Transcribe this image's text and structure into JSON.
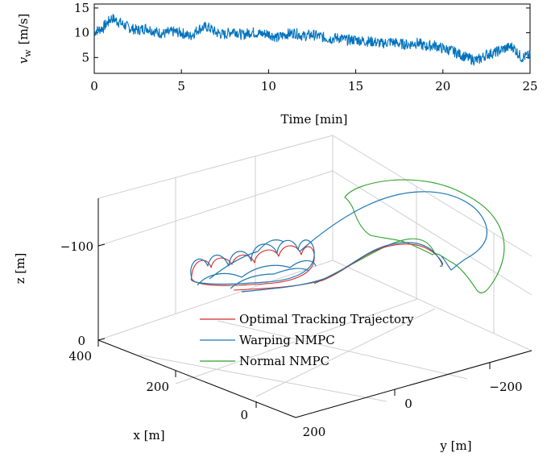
{
  "chart_data": [
    {
      "type": "line",
      "xlabel": "Time [min]",
      "ylabel": "v_w [m/s]",
      "ylabel_main": "v",
      "ylabel_sub": "w",
      "ylabel_unit": "[m/s]",
      "xlim": [
        0,
        25
      ],
      "ylim": [
        1.8,
        15.8
      ],
      "x_ticks": [
        "0",
        "5",
        "10",
        "15",
        "20",
        "25"
      ],
      "y_ticks": [
        "5",
        "10",
        "15"
      ],
      "color": "#0072BD",
      "series": [
        {
          "x": [
            0,
            0.5,
            1,
            1.5,
            2,
            2.5,
            3,
            3.5,
            4,
            4.5,
            5,
            5.5,
            6,
            6.5,
            7,
            7.5,
            8,
            8.5,
            9,
            9.5,
            10,
            10.5,
            11,
            11.5,
            12,
            12.5,
            13,
            13.5,
            14,
            14.5,
            15,
            15.5,
            16,
            16.5,
            17,
            17.5,
            18,
            18.5,
            19,
            19.5,
            20,
            20.5,
            21,
            21.5,
            22,
            22.5,
            23,
            23.5,
            24,
            24.5,
            25
          ],
          "y": [
            10.2,
            11.0,
            13.0,
            12.0,
            11.0,
            10.5,
            11.0,
            10.2,
            9.8,
            10.2,
            10.0,
            9.3,
            10.8,
            11.2,
            10.0,
            9.6,
            10.5,
            9.5,
            10.2,
            9.8,
            9.8,
            9.0,
            9.7,
            10.0,
            9.3,
            9.6,
            9.2,
            8.8,
            9.0,
            8.5,
            8.6,
            8.3,
            8.2,
            7.8,
            8.2,
            7.8,
            7.6,
            8.0,
            7.2,
            7.5,
            6.8,
            6.4,
            5.6,
            4.8,
            4.4,
            5.6,
            6.0,
            6.8,
            7.2,
            5.0,
            5.4
          ]
        }
      ]
    },
    {
      "type": "line3d",
      "xlabel": "x [m]",
      "ylabel": "y [m]",
      "zlabel": "z [m]",
      "x_ticks": [
        "0",
        "200",
        "400"
      ],
      "y_ticks": [
        "−200",
        "0",
        "200"
      ],
      "z_ticks": [
        "−100",
        "0"
      ],
      "legend": "upper-left inside axes",
      "series": [
        {
          "name": "Optimal Tracking Trajectory",
          "color": "#D62728"
        },
        {
          "name": "Warping NMPC",
          "color": "#1F77B4"
        },
        {
          "name": "Normal NMPC",
          "color": "#2CA02C"
        }
      ]
    }
  ]
}
